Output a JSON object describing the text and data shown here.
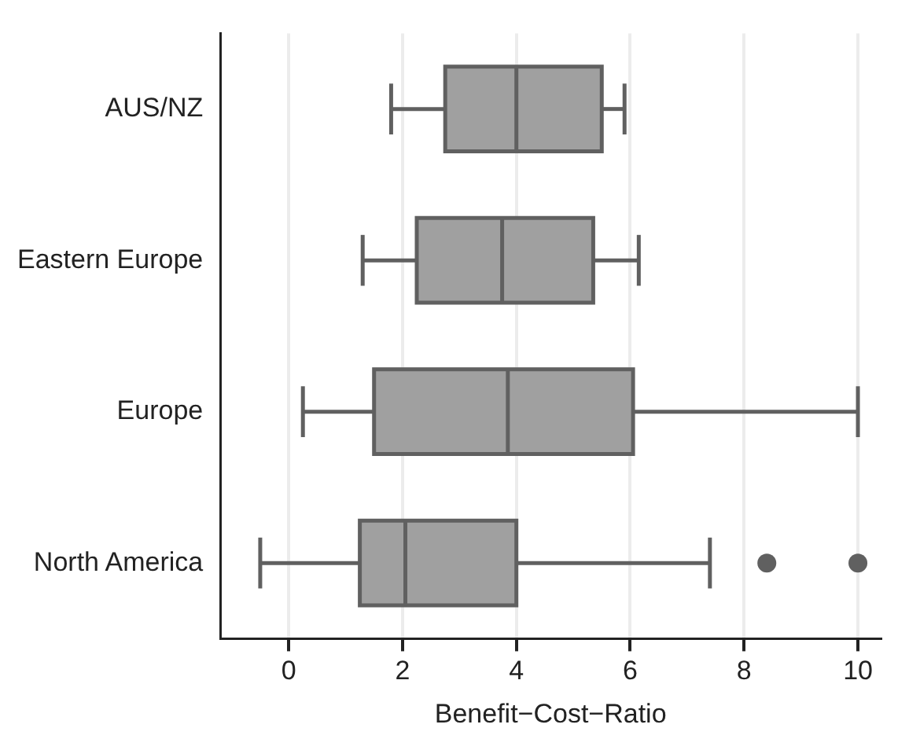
{
  "chart_data": {
    "type": "box",
    "orientation": "horizontal",
    "xlabel": "Benefit−Cost−Ratio",
    "categories": [
      "AUS/NZ",
      "Eastern Europe",
      "Europe",
      "North America"
    ],
    "boxes": [
      {
        "low": 1.8,
        "q1": 2.75,
        "median": 4.0,
        "q3": 5.5,
        "high": 5.9
      },
      {
        "low": 1.3,
        "q1": 2.25,
        "median": 3.75,
        "q3": 5.35,
        "high": 6.15
      },
      {
        "low": 0.25,
        "q1": 1.5,
        "median": 3.85,
        "q3": 6.05,
        "high": 10.0
      },
      {
        "low": -0.5,
        "q1": 1.25,
        "median": 2.05,
        "q3": 4.0,
        "high": 7.4,
        "outliers": [
          8.4,
          10.0
        ]
      }
    ],
    "color": "#a0a0a0",
    "xlim": [
      -1.2,
      10.4
    ],
    "xticks": [
      0,
      2,
      4,
      6,
      8,
      10
    ],
    "grid": "x",
    "legend": false
  }
}
